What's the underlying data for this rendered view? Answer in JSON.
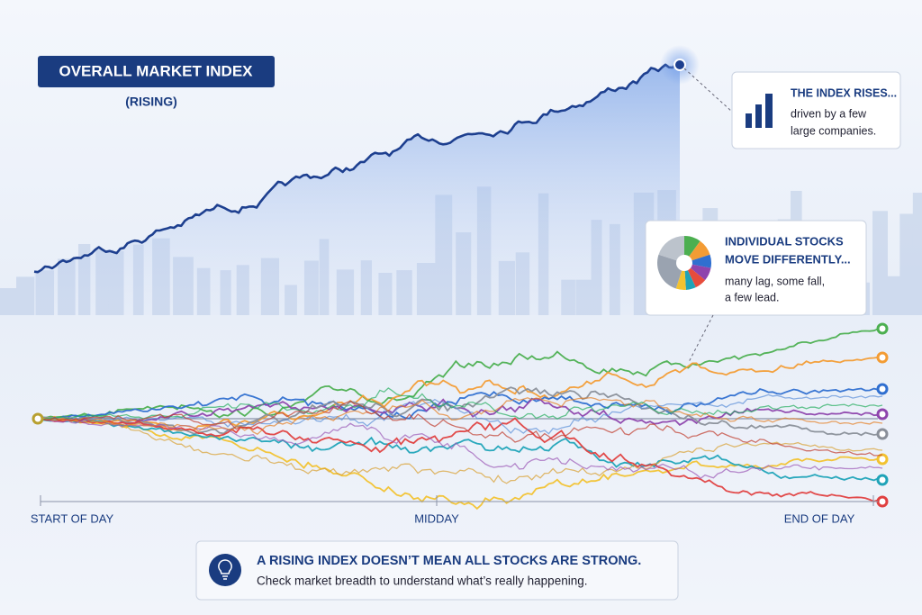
{
  "header": {
    "title": "OVERALL MARKET INDEX",
    "subtitle": "(RISING)"
  },
  "callouts": [
    {
      "title": "THE INDEX RISES...",
      "lines": [
        "driven by a few",
        "large companies."
      ]
    },
    {
      "title": [
        "INDIVIDUAL STOCKS",
        "MOVE DIFFERENTLY..."
      ],
      "lines": [
        "many lag, some fall,",
        "a few lead."
      ]
    }
  ],
  "time_labels": [
    "START OF DAY",
    "MIDDAY",
    "END OF DAY"
  ],
  "footer": {
    "title": "A RISING INDEX DOESN’T MEAN ALL STOCKS ARE STRONG.",
    "text": "Check market breadth to understand what’s really happening."
  }
}
